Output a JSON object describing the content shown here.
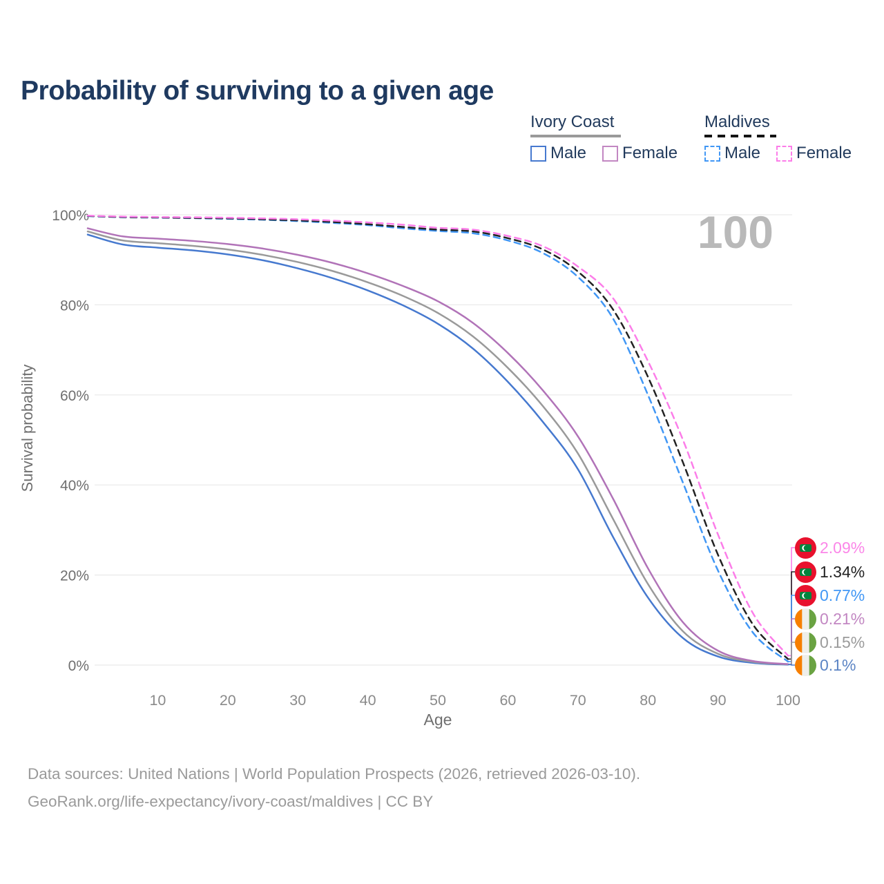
{
  "title": "Probability of surviving to a given age",
  "watermark": "100",
  "legend": {
    "groups": [
      {
        "name": "Ivory Coast",
        "style": "solid",
        "items": [
          {
            "label": "Male",
            "color": "#4679cf"
          },
          {
            "label": "Female",
            "color": "#c287c2"
          }
        ]
      },
      {
        "name": "Maldives",
        "style": "dashed",
        "items": [
          {
            "label": "Male",
            "color": "#4197f5"
          },
          {
            "label": "Female",
            "color": "#fc7de9"
          }
        ]
      }
    ]
  },
  "chart_data": {
    "type": "line",
    "title": "Probability of surviving to a given age",
    "xlabel": "Age",
    "ylabel": "Survival probability",
    "xlim": [
      0,
      100
    ],
    "ylim": [
      0,
      100
    ],
    "x_ticks": [
      10,
      20,
      30,
      40,
      50,
      60,
      70,
      80,
      90,
      100
    ],
    "y_tick_values": [
      0,
      20,
      40,
      60,
      80,
      100
    ],
    "y_tick_labels": [
      "0%",
      "20%",
      "40%",
      "60%",
      "80%",
      "100%"
    ],
    "grid": "horizontal-only",
    "legend_position": "top-right",
    "ages": [
      0,
      5,
      10,
      15,
      20,
      25,
      30,
      35,
      40,
      45,
      50,
      55,
      60,
      65,
      70,
      75,
      80,
      85,
      90,
      95,
      100
    ],
    "series": [
      {
        "id": "ivory-coast-male",
        "name": "Ivory Coast Male",
        "color": "#4679cf",
        "dashed": false,
        "values": [
          95.6,
          93.4,
          92.7,
          92.1,
          91.2,
          89.9,
          88.1,
          85.9,
          83.2,
          79.9,
          75.8,
          70.3,
          62.9,
          54.0,
          43.5,
          28.5,
          15.0,
          6.0,
          1.9,
          0.5,
          0.1
        ]
      },
      {
        "id": "ivory-coast-both",
        "name": "Ivory Coast Both sexes",
        "color": "#9a9a9a",
        "dashed": false,
        "values": [
          96.3,
          94.3,
          93.7,
          93.1,
          92.3,
          91.1,
          89.5,
          87.5,
          85.0,
          82.0,
          78.2,
          73.0,
          66.0,
          57.5,
          47.0,
          32.5,
          18.0,
          7.5,
          2.5,
          0.7,
          0.15
        ]
      },
      {
        "id": "ivory-coast-female",
        "name": "Ivory Coast Female",
        "color": "#b173b8",
        "dashed": false,
        "values": [
          97.0,
          95.2,
          94.7,
          94.2,
          93.5,
          92.5,
          91.1,
          89.3,
          87.0,
          84.2,
          80.8,
          76.0,
          69.3,
          61.0,
          50.8,
          37.0,
          21.5,
          9.5,
          3.2,
          0.9,
          0.21
        ]
      },
      {
        "id": "maldives-male",
        "name": "Maldives Male",
        "color": "#4197f5",
        "dashed": true,
        "values": [
          99.7,
          99.45,
          99.35,
          99.25,
          99.1,
          98.9,
          98.6,
          98.2,
          97.7,
          97.0,
          96.4,
          95.9,
          94.3,
          91.5,
          86.2,
          77.0,
          60.0,
          40.5,
          21.0,
          7.2,
          0.77
        ]
      },
      {
        "id": "maldives-both",
        "name": "Maldives Both sexes",
        "color": "#222222",
        "dashed": true,
        "values": [
          99.75,
          99.5,
          99.4,
          99.3,
          99.2,
          99.0,
          98.75,
          98.4,
          97.9,
          97.3,
          96.7,
          96.3,
          94.8,
          92.3,
          87.4,
          79.0,
          64.0,
          45.0,
          24.5,
          9.0,
          1.34
        ]
      },
      {
        "id": "maldives-female",
        "name": "Maldives Female",
        "color": "#fc7de9",
        "dashed": true,
        "values": [
          99.8,
          99.6,
          99.5,
          99.45,
          99.35,
          99.2,
          99.0,
          98.7,
          98.3,
          97.8,
          97.1,
          96.7,
          95.3,
          93.0,
          88.5,
          81.5,
          67.5,
          50.0,
          29.0,
          11.5,
          2.09
        ]
      }
    ],
    "end_labels": [
      {
        "value": "2.09%",
        "series_index": 5,
        "flag": "maldives",
        "text_color": "#fb86e8"
      },
      {
        "value": "1.34%",
        "series_index": 4,
        "flag": "maldives",
        "text_color": "#222222"
      },
      {
        "value": "0.77%",
        "series_index": 3,
        "flag": "maldives",
        "text_color": "#4197f5"
      },
      {
        "value": "0.21%",
        "series_index": 2,
        "flag": "ivory-coast",
        "text_color": "#c287c2"
      },
      {
        "value": "0.15%",
        "series_index": 1,
        "flag": "ivory-coast",
        "text_color": "#9b9b9b"
      },
      {
        "value": "0.1%",
        "series_index": 0,
        "flag": "ivory-coast",
        "text_color": "#5b84c4"
      }
    ]
  },
  "footer": {
    "line1": "Data sources: United Nations | World Population Prospects (2026, retrieved 2026-03-10).",
    "line2": "GeoRank.org/life-expectancy/ivory-coast/maldives | CC BY"
  }
}
